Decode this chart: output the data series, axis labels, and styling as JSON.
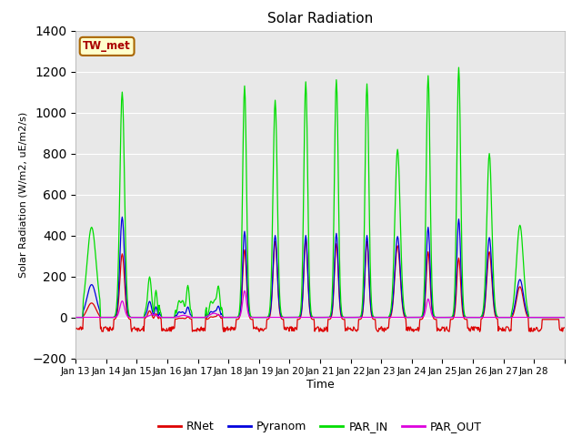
{
  "title": "Solar Radiation",
  "ylabel": "Solar Radiation (W/m2, uE/m2/s)",
  "xlabel": "Time",
  "station_label": "TW_met",
  "ylim": [
    -200,
    1400
  ],
  "yticks": [
    -200,
    0,
    200,
    400,
    600,
    800,
    1000,
    1200,
    1400
  ],
  "x_tick_labels": [
    "Jan 13",
    "Jan 14",
    "Jan 15",
    "Jan 16",
    "Jan 17",
    "Jan 18",
    "Jan 19",
    "Jan 20",
    "Jan 21",
    "Jan 22",
    "Jan 23",
    "Jan 24",
    "Jan 25",
    "Jan 26",
    "Jan 27",
    "Jan 28"
  ],
  "colors": {
    "RNet": "#dd0000",
    "Pyranom": "#0000dd",
    "PAR_IN": "#00dd00",
    "PAR_OUT": "#dd00dd"
  },
  "background_color": "#e8e8e8",
  "legend_entries": [
    "RNet",
    "Pyranom",
    "PAR_IN",
    "PAR_OUT"
  ]
}
